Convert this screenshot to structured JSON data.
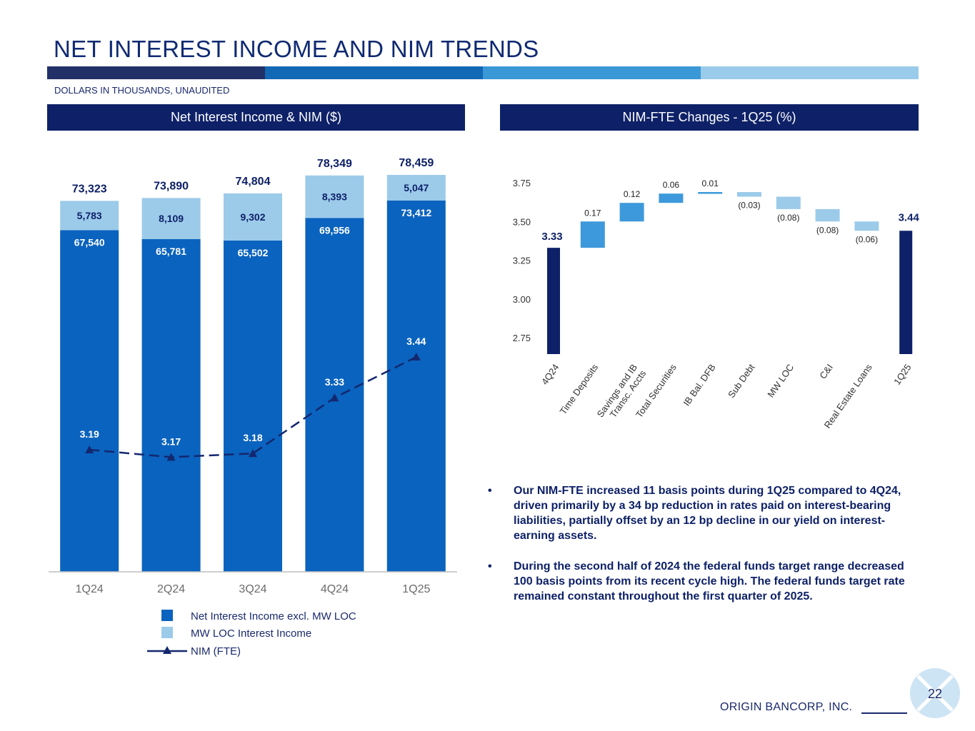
{
  "page": {
    "title": "NET INTEREST INCOME AND NIM TRENDS",
    "subtitle": "DOLLARS IN THOUSANDS, UNAUDITED",
    "page_number": "22",
    "footer": "ORIGIN BANCORP, INC.",
    "colors": {
      "navy": "#0e2168",
      "blue": "#0a63be",
      "light_blue": "#9ccbea",
      "mid_blue": "#3d99db",
      "line": "#13276e"
    }
  },
  "left_panel": {
    "header": "Net Interest Income & NIM ($)"
  },
  "right_panel": {
    "header": "NIM-FTE Changes - 1Q25 (%)"
  },
  "bullets": [
    "Our NIM-FTE increased 11 basis points during 1Q25 compared to 4Q24, driven primarily by a 34 bp reduction in rates paid on interest-bearing liabilities, partially offset by an 12 bp decline in our yield on interest-earning assets.",
    "During the second half of 2024 the federal funds target range decreased 100 basis points from its recent cycle high. The federal funds target rate remained constant throughout the first quarter of 2025."
  ],
  "chart_data": [
    {
      "type": "bar",
      "title": "Net Interest Income & NIM ($)",
      "categories": [
        "1Q24",
        "2Q24",
        "3Q24",
        "4Q24",
        "1Q25"
      ],
      "stacked": true,
      "totals": [
        73323,
        73890,
        74804,
        78349,
        78459
      ],
      "total_labels": [
        "73,323",
        "73,890",
        "74,804",
        "78,349",
        "78,459"
      ],
      "series": [
        {
          "name": "Net Interest Income excl. MW LOC",
          "values": [
            67540,
            65781,
            65502,
            69956,
            73412
          ],
          "labels": [
            "67,540",
            "65,781",
            "65,502",
            "69,956",
            "73,412"
          ]
        },
        {
          "name": "MW LOC Interest Income",
          "values": [
            5783,
            8109,
            9302,
            8393,
            5047
          ],
          "labels": [
            "5,783",
            "8,109",
            "9,302",
            "8,393",
            "5,047"
          ]
        },
        {
          "name": "NIM (FTE)",
          "type": "line",
          "values": [
            3.19,
            3.17,
            3.18,
            3.33,
            3.44
          ],
          "labels": [
            "3.19",
            "3.17",
            "3.18",
            "3.33",
            "3.44"
          ]
        }
      ],
      "legend": [
        "Net Interest Income excl. MW LOC",
        "MW LOC Interest Income",
        "NIM (FTE)"
      ],
      "legend_position": "bottom"
    },
    {
      "type": "waterfall",
      "title": "NIM-FTE Changes - 1Q25 (%)",
      "ylim": [
        2.75,
        3.75
      ],
      "yticks": [
        "2.75",
        "3.00",
        "3.25",
        "3.50",
        "3.75"
      ],
      "ytick_values": [
        2.75,
        3.0,
        3.25,
        3.5,
        3.75
      ],
      "categories": [
        "4Q24",
        "Time Deposits",
        "Savings and IB Transc. Accts",
        "Total Securities",
        "IB Bal. DFB",
        "Sub Debt",
        "MW LOC",
        "C&I",
        "Real Estate Loans",
        "1Q25"
      ],
      "category_lines": [
        [
          "4Q24"
        ],
        [
          "Time Deposits"
        ],
        [
          "Savings and IB",
          "Transc. Accts"
        ],
        [
          "Total Securities"
        ],
        [
          "IB Bal. DFB"
        ],
        [
          "Sub Debt"
        ],
        [
          "MW LOC"
        ],
        [
          "C&I"
        ],
        [
          "Real Estate Loans"
        ],
        [
          "1Q25"
        ]
      ],
      "start": 3.33,
      "end": 3.44,
      "changes": [
        0.17,
        0.12,
        0.06,
        0.01,
        -0.03,
        -0.08,
        -0.08,
        -0.06
      ],
      "value_labels": [
        "3.33",
        "0.17",
        "0.12",
        "0.06",
        "0.01",
        "(0.03)",
        "(0.08)",
        "(0.08)",
        "(0.06)",
        "3.44"
      ]
    }
  ]
}
